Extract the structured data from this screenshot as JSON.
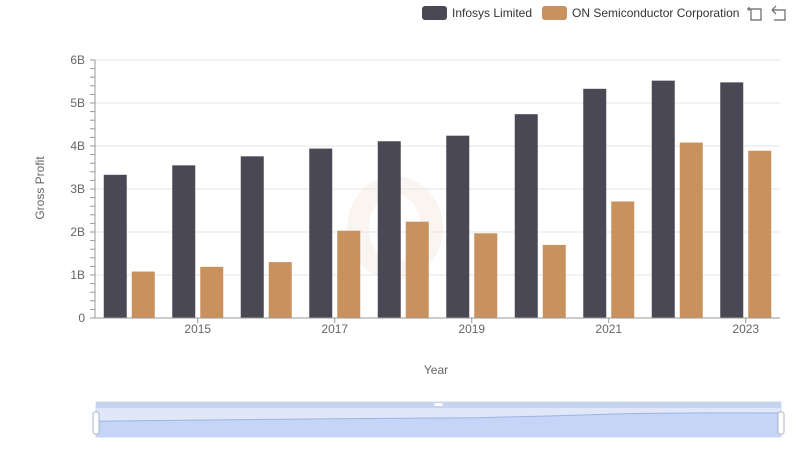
{
  "chart_data": {
    "type": "bar",
    "categories": [
      "2014",
      "2015",
      "2016",
      "2017",
      "2018",
      "2019",
      "2020",
      "2021",
      "2022",
      "2023"
    ],
    "series": [
      {
        "name": "Infosys Limited",
        "color": "#4a4855",
        "values": [
          3.33,
          3.55,
          3.76,
          3.94,
          4.11,
          4.24,
          4.74,
          5.33,
          5.52,
          5.48
        ]
      },
      {
        "name": "ON Semiconductor Corporation",
        "color": "#c8915d",
        "values": [
          1.08,
          1.19,
          1.3,
          2.03,
          2.24,
          1.97,
          1.7,
          2.71,
          4.08,
          3.89
        ]
      }
    ],
    "xlabel": "Year",
    "ylabel": "Gross Profit",
    "ylim": [
      0,
      6
    ],
    "yticks": [
      "0",
      "1B",
      "2B",
      "3B",
      "4B",
      "5B",
      "6B"
    ],
    "xtick_labels": [
      "2015",
      "2017",
      "2019",
      "2021",
      "2023"
    ],
    "grid": true,
    "legend_position": "top-right",
    "datazoom": {
      "range": [
        0,
        100
      ]
    }
  },
  "toolbox": {
    "zoom_icon": "zoom-icon",
    "restore_icon": "restore-icon"
  }
}
